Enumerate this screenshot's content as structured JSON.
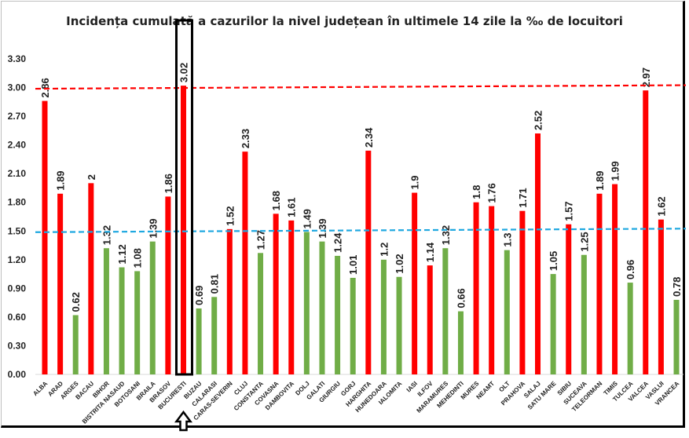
{
  "chart_data": {
    "type": "bar",
    "title": "Incidența cumulată a cazurilor la nivel județean în ultimele 14 zile la ‰ de locuitori",
    "categories": [
      "ALBA",
      "ARAD",
      "ARGES",
      "BACAU",
      "BIHOR",
      "BISTRITA NASAUD",
      "BOTOSANI",
      "BRAILA",
      "BRASOV",
      "BUCURESTI",
      "BUZAU",
      "CALARASI",
      "CARAS-SEVERIN",
      "CLUJ",
      "CONSTANTA",
      "COVASNA",
      "DAMBOVITA",
      "DOLJ",
      "GALATI",
      "GIURGIU",
      "GORJ",
      "HARGHITA",
      "HUNEDOARA",
      "IALOMITA",
      "IASI",
      "ILFOV",
      "MARAMURES",
      "MEHEDINTI",
      "MURES",
      "NEAMT",
      "OLT",
      "PRAHOVA",
      "SALAJ",
      "SATU MARE",
      "SIBIU",
      "SUCEAVA",
      "TELEORMAN",
      "TIMIS",
      "TULCEA",
      "VALCEA",
      "VASLUI",
      "VRANCEA"
    ],
    "values": [
      2.86,
      1.89,
      0.62,
      2,
      1.32,
      1.12,
      1.08,
      1.39,
      1.86,
      3.02,
      0.69,
      0.81,
      1.52,
      2.33,
      1.27,
      1.68,
      1.61,
      1.49,
      1.39,
      1.24,
      1.01,
      2.34,
      1.2,
      1.02,
      1.9,
      1.14,
      1.32,
      0.66,
      1.8,
      1.76,
      1.3,
      1.71,
      2.52,
      1.05,
      1.57,
      1.25,
      1.89,
      1.99,
      0.96,
      2.97,
      1.62,
      0.78
    ],
    "bar_colors": [
      "r",
      "r",
      "g",
      "r",
      "g",
      "g",
      "g",
      "g",
      "r",
      "r",
      "g",
      "g",
      "r",
      "r",
      "g",
      "r",
      "r",
      "g",
      "g",
      "g",
      "g",
      "r",
      "g",
      "g",
      "r",
      "r",
      "g",
      "g",
      "r",
      "r",
      "g",
      "r",
      "r",
      "g",
      "r",
      "g",
      "r",
      "r",
      "g",
      "r",
      "r",
      "g"
    ],
    "colors": {
      "r": "#ff0000",
      "g": "#70ad47"
    },
    "yticks": [
      "0.00",
      "0.30",
      "0.60",
      "0.90",
      "1.20",
      "1.50",
      "1.80",
      "2.10",
      "2.40",
      "2.70",
      "3.00",
      "3.30"
    ],
    "ylim": [
      0,
      3.3
    ],
    "reference_lines": [
      {
        "value": 3.0,
        "color": "#ff0000",
        "style": "dashed"
      },
      {
        "value": 1.5,
        "color": "#1fa8e0",
        "style": "dashed"
      }
    ],
    "highlight": "BUCURESTI",
    "grid": false,
    "legend": "none"
  }
}
